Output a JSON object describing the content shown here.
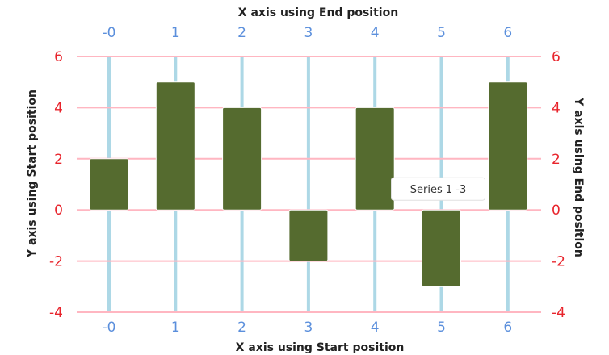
{
  "chart_data": {
    "type": "bar",
    "categories": [
      "-0",
      "1",
      "2",
      "3",
      "4",
      "5",
      "6"
    ],
    "series": [
      {
        "values": [
          2,
          5,
          4,
          -2,
          4,
          -3,
          5
        ]
      }
    ],
    "xlabel_bottom": "X axis using Start position",
    "xlabel_top": "X axis using End position",
    "ylabel_left": "Y axis using Start position",
    "ylabel_right": "Y axis using End position",
    "yticks": [
      "6",
      "4",
      "2",
      "0",
      "-2",
      "-4"
    ],
    "ylim": [
      -4,
      6
    ],
    "grid": true,
    "tooltip": {
      "text": "Series 1 -3",
      "category_index": 5
    },
    "colors": {
      "bar": "#556b2f",
      "horizontal_grid": "#ffb6c1",
      "vertical_grid": "#add8e6",
      "x_tick": "#5b8fdc",
      "y_tick": "#e8242c"
    }
  }
}
